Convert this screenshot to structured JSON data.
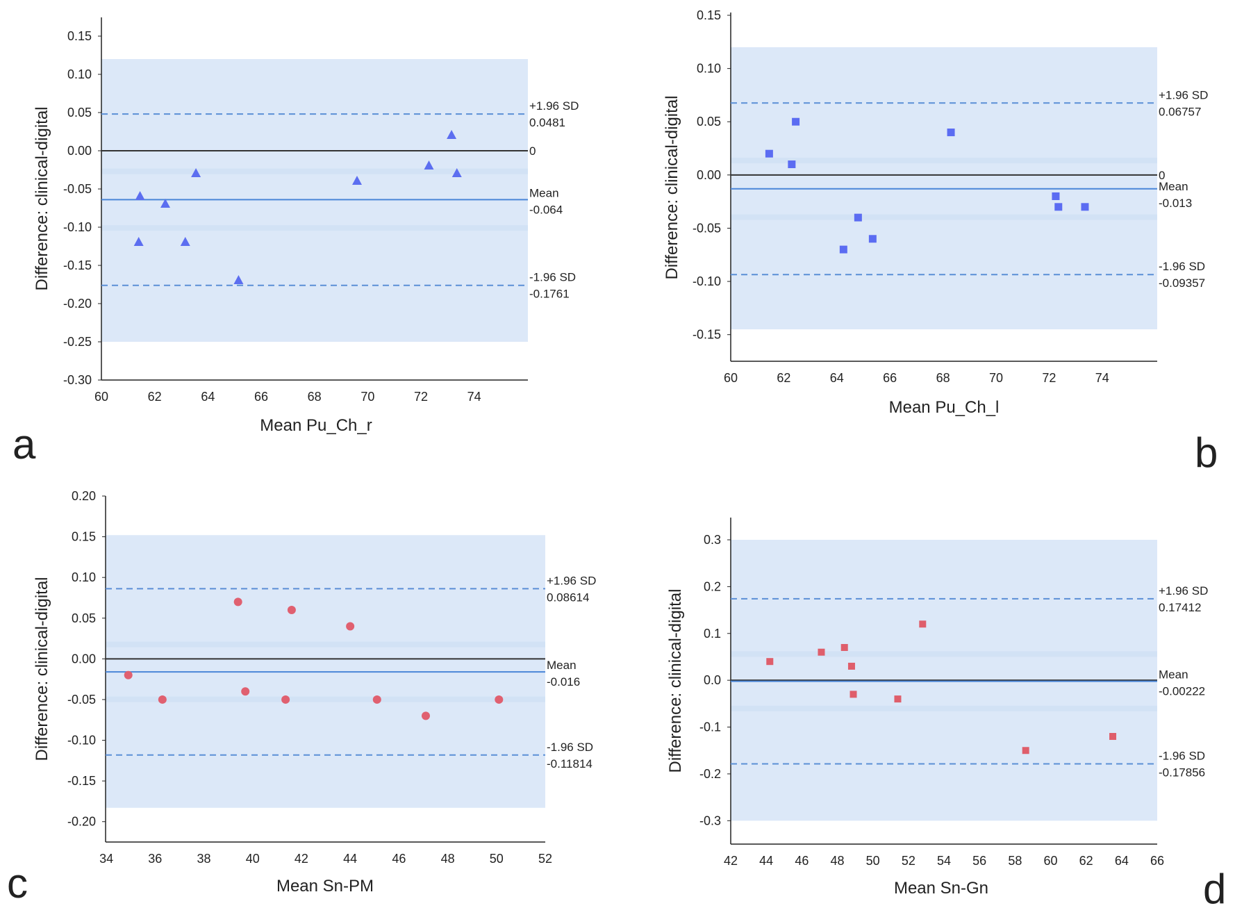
{
  "figure": {
    "panel_labels": [
      "a",
      "b",
      "c",
      "d"
    ]
  },
  "colors": {
    "band": "#dce8f8",
    "band_stripe": "#cddff4",
    "limit_line": "#5b8fd6",
    "mean_line": "#4a86d8",
    "zero_line": "#333333",
    "triangle": "#5c6ef0",
    "square": "#5b6cf2",
    "circle": "#e06070",
    "red_square": "#df5e6b"
  },
  "chart_data": [
    {
      "panel": "a",
      "type": "scatter",
      "marker": "triangle",
      "xlabel": "Mean Pu_Ch_r",
      "ylabel": "Difference: clinical-digital",
      "xlim": [
        60,
        75
      ],
      "ylim": [
        -0.3,
        0.15
      ],
      "xticks": [
        "60",
        "62",
        "64",
        "66",
        "68",
        "70",
        "72",
        "74"
      ],
      "yticks": [
        "0.15",
        "0.10",
        "0.05",
        "0.00",
        "-0.05",
        "-0.10",
        "-0.15",
        "-0.20",
        "-0.25",
        "-0.30"
      ],
      "band": [
        -0.25,
        0.12
      ],
      "zero_line": {
        "y": 0,
        "label": "0"
      },
      "mean": {
        "label": "Mean",
        "value_text": "-0.064",
        "y": -0.064
      },
      "upper_limit": {
        "label": "+1.96 SD",
        "value_text": "0.0481",
        "y": 0.0481
      },
      "lower_limit": {
        "label": "-1.96 SD",
        "value_text": "-0.1761",
        "y": -0.1761
      },
      "points": [
        {
          "x": 61.4,
          "y": -0.12
        },
        {
          "x": 61.45,
          "y": -0.06
        },
        {
          "x": 62.4,
          "y": -0.07
        },
        {
          "x": 63.15,
          "y": -0.12
        },
        {
          "x": 63.55,
          "y": -0.03
        },
        {
          "x": 65.15,
          "y": -0.17
        },
        {
          "x": 69.6,
          "y": -0.04
        },
        {
          "x": 72.3,
          "y": -0.02
        },
        {
          "x": 73.15,
          "y": 0.02
        },
        {
          "x": 73.35,
          "y": -0.03
        }
      ]
    },
    {
      "panel": "b",
      "type": "scatter",
      "marker": "square",
      "xlabel": "Mean Pu_Ch_l",
      "ylabel": "Difference: clinical-digital",
      "xlim": [
        60,
        75
      ],
      "ylim": [
        -0.175,
        0.15
      ],
      "xticks": [
        "60",
        "62",
        "64",
        "66",
        "68",
        "70",
        "72",
        "74"
      ],
      "yticks": [
        "0.15",
        "0.10",
        "0.05",
        "0.00",
        "-0.05",
        "-0.10",
        "-0.15"
      ],
      "band": [
        -0.145,
        0.12
      ],
      "zero_line": {
        "y": 0,
        "label": "0"
      },
      "mean": {
        "label": "Mean",
        "value_text": "-0.013",
        "y": -0.013
      },
      "upper_limit": {
        "label": "+1.96 SD",
        "value_text": "0.06757",
        "y": 0.06757
      },
      "lower_limit": {
        "label": "-1.96 SD",
        "value_text": "-0.09357",
        "y": -0.09357
      },
      "points": [
        {
          "x": 61.45,
          "y": 0.02
        },
        {
          "x": 62.3,
          "y": 0.01
        },
        {
          "x": 62.45,
          "y": 0.05
        },
        {
          "x": 64.25,
          "y": -0.07
        },
        {
          "x": 64.8,
          "y": -0.04
        },
        {
          "x": 65.35,
          "y": -0.06
        },
        {
          "x": 68.3,
          "y": 0.04
        },
        {
          "x": 72.25,
          "y": -0.02
        },
        {
          "x": 72.35,
          "y": -0.03
        },
        {
          "x": 73.35,
          "y": -0.03
        }
      ]
    },
    {
      "panel": "c",
      "type": "scatter",
      "marker": "circle",
      "xlabel": "Mean Sn-PM",
      "ylabel": "Difference: clinical-digital",
      "xlim": [
        33,
        52
      ],
      "ylim": [
        -0.225,
        0.2
      ],
      "xticks": [
        "34",
        "36",
        "38",
        "40",
        "42",
        "44",
        "46",
        "48",
        "50",
        "52"
      ],
      "xtick_values": [
        34,
        36,
        38,
        40,
        42,
        44,
        46,
        48,
        50,
        52
      ],
      "yticks": [
        "0.20",
        "0.15",
        "0.10",
        "0.05",
        "0.00",
        "-0.05",
        "-0.10",
        "-0.15",
        "-0.20"
      ],
      "band": [
        -0.183,
        0.152
      ],
      "zero_line": {
        "y": 0,
        "label": ""
      },
      "mean": {
        "label": "Mean",
        "value_text": "-0.016",
        "y": -0.016
      },
      "upper_limit": {
        "label": "+1.96 SD",
        "value_text": "0.08614",
        "y": 0.08614
      },
      "lower_limit": {
        "label": "-1.96 SD",
        "value_text": "-0.11814",
        "y": -0.11814
      },
      "points": [
        {
          "x": 34.9,
          "y": -0.02
        },
        {
          "x": 36.3,
          "y": -0.05
        },
        {
          "x": 39.4,
          "y": 0.07
        },
        {
          "x": 39.7,
          "y": -0.04
        },
        {
          "x": 41.35,
          "y": -0.05
        },
        {
          "x": 41.6,
          "y": 0.06
        },
        {
          "x": 44.0,
          "y": 0.04
        },
        {
          "x": 45.1,
          "y": -0.05
        },
        {
          "x": 47.1,
          "y": -0.07
        },
        {
          "x": 50.1,
          "y": -0.05
        }
      ]
    },
    {
      "panel": "d",
      "type": "scatter",
      "marker": "square",
      "xlabel": "Mean Sn-Gn",
      "ylabel": "Difference: clinical-digital",
      "xlim": [
        42,
        66
      ],
      "ylim": [
        -0.35,
        0.3
      ],
      "xticks": [
        "42",
        "44",
        "46",
        "48",
        "50",
        "52",
        "54",
        "56",
        "58",
        "60",
        "62",
        "64",
        "66"
      ],
      "yticks": [
        "0.3",
        "0.2",
        "0.1",
        "0.0",
        "-0.1",
        "-0.2",
        "-0.3"
      ],
      "band": [
        -0.3,
        0.3
      ],
      "zero_line": {
        "y": 0,
        "label": ""
      },
      "mean": {
        "label": "Mean",
        "value_text": "-0.00222",
        "y": -0.00222
      },
      "upper_limit": {
        "label": "+1.96 SD",
        "value_text": "0.17412",
        "y": 0.17412
      },
      "lower_limit": {
        "label": "-1.96 SD",
        "value_text": "-0.17856",
        "y": -0.17856
      },
      "points": [
        {
          "x": 44.2,
          "y": 0.04
        },
        {
          "x": 47.1,
          "y": 0.06
        },
        {
          "x": 48.4,
          "y": 0.07
        },
        {
          "x": 48.8,
          "y": 0.03
        },
        {
          "x": 48.9,
          "y": -0.03
        },
        {
          "x": 51.4,
          "y": -0.04
        },
        {
          "x": 52.8,
          "y": 0.12
        },
        {
          "x": 58.6,
          "y": -0.15
        },
        {
          "x": 63.5,
          "y": -0.12
        }
      ]
    }
  ]
}
